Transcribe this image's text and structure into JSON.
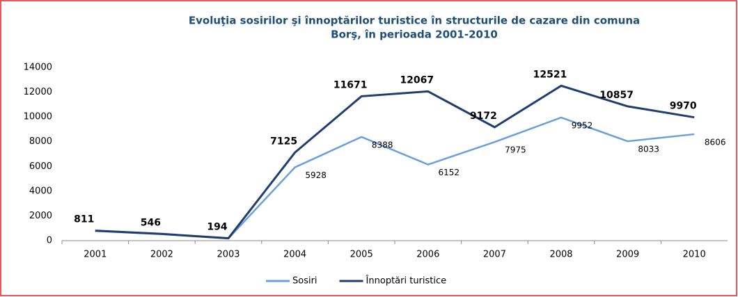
{
  "chart_data": {
    "type": "line",
    "title": [
      "Evoluţia sosirilor şi înnoptărilor turistice în structurile de cazare din comuna",
      "Borş, în perioada 2001-2010"
    ],
    "categories": [
      "2001",
      "2002",
      "2003",
      "2004",
      "2005",
      "2006",
      "2007",
      "2008",
      "2009",
      "2010"
    ],
    "series": [
      {
        "name": "Sosiri",
        "color": "#6a9fdc",
        "values": [
          780,
          520,
          180,
          5928,
          8388,
          6152,
          7975,
          9952,
          8033,
          8606
        ],
        "value_labels": [
          null,
          null,
          null,
          "5928",
          "8388",
          "6152",
          "7975",
          "9952",
          "8033",
          "8606"
        ]
      },
      {
        "name": "Înnoptări turistice",
        "color": "#1f3d6e",
        "values": [
          811,
          546,
          194,
          7125,
          11671,
          12067,
          9172,
          12521,
          10857,
          9970
        ]
      }
    ],
    "ylim": [
      0,
      14000
    ],
    "yticks": [
      0,
      2000,
      4000,
      6000,
      8000,
      10000,
      12000,
      14000
    ],
    "grid": false
  }
}
